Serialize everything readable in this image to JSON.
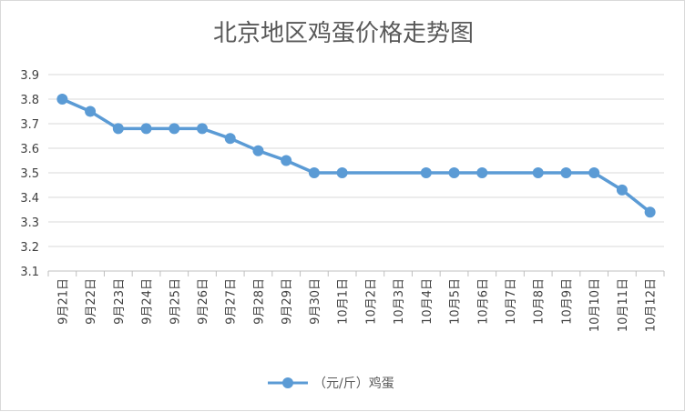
{
  "chart_data": {
    "type": "line",
    "title": "北京地区鸡蛋价格走势图",
    "xlabel": "",
    "ylabel": "",
    "categories": [
      "9月21日",
      "9月22日",
      "9月23日",
      "9月24日",
      "9月25日",
      "9月26日",
      "9月27日",
      "9月28日",
      "9月29日",
      "9月30日",
      "10月1日",
      "10月2日",
      "10月3日",
      "10月4日",
      "10月5日",
      "10月6日",
      "10月7日",
      "10月8日",
      "10月9日",
      "10月10日",
      "10月11日",
      "10月12日"
    ],
    "series": [
      {
        "name": "（元/斤）鸡蛋",
        "color": "#5b9bd5",
        "values": [
          3.8,
          3.75,
          3.68,
          3.68,
          3.68,
          3.68,
          3.64,
          3.59,
          3.55,
          3.5,
          3.5,
          null,
          null,
          3.5,
          3.5,
          3.5,
          null,
          3.5,
          3.5,
          3.5,
          3.43,
          3.34
        ]
      }
    ],
    "ylim": [
      3.1,
      3.9
    ],
    "yticks": [
      "3.1",
      "3.2",
      "3.3",
      "3.4",
      "3.5",
      "3.6",
      "3.7",
      "3.8",
      "3.9"
    ],
    "grid": true,
    "legend_position": "bottom"
  }
}
